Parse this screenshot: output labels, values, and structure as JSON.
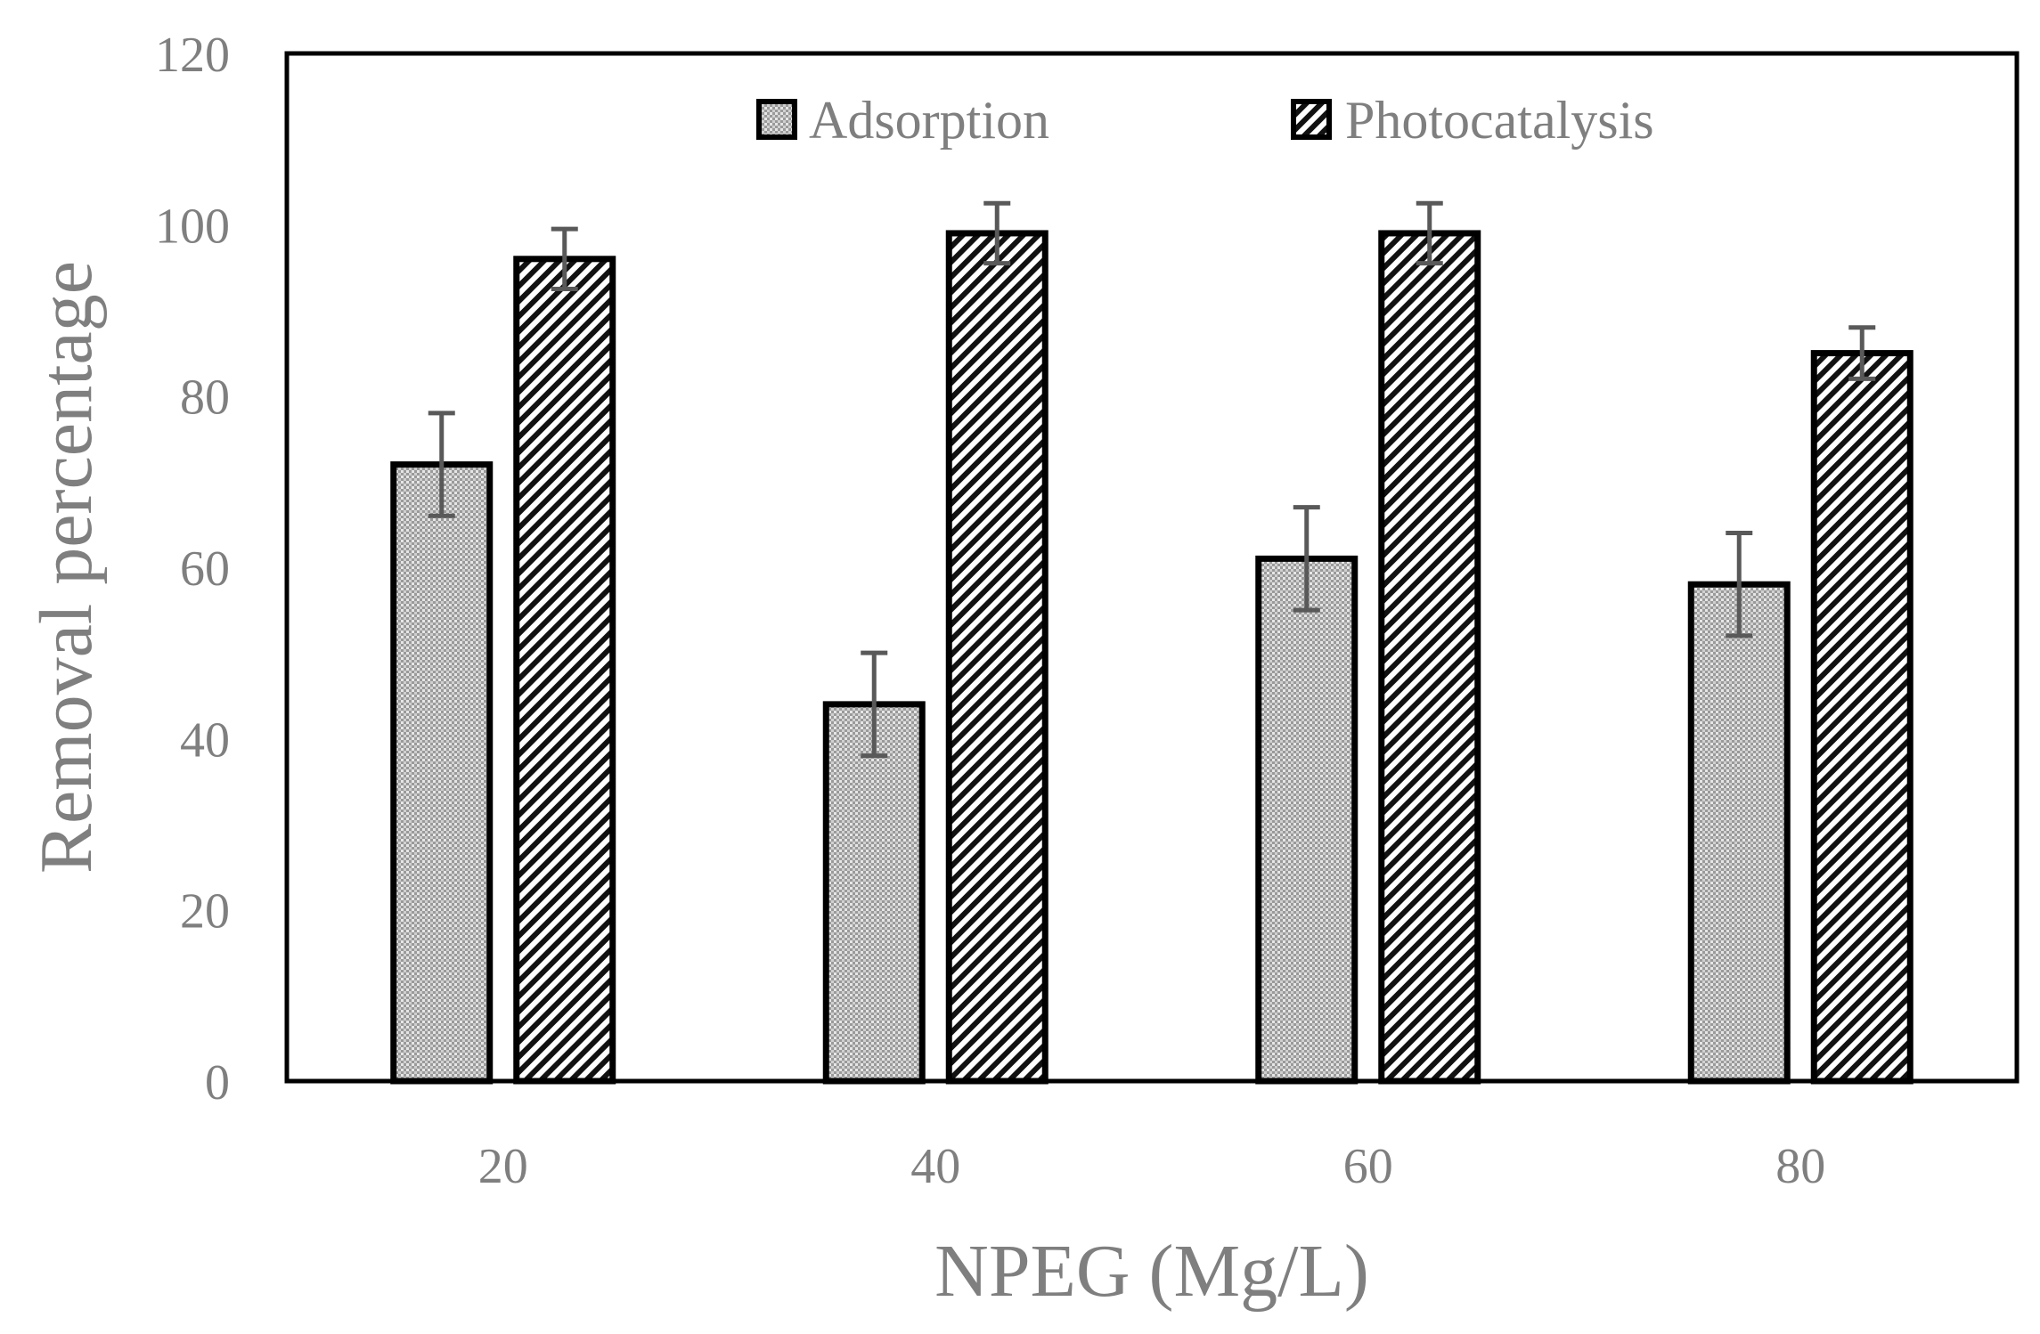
{
  "chart_data": {
    "type": "bar",
    "title": "",
    "xlabel": "NPEG (Mg/L)",
    "ylabel": "Removal percentage",
    "categories": [
      "20",
      "40",
      "60",
      "80"
    ],
    "ylim": [
      0,
      120
    ],
    "yticks": [
      0,
      20,
      40,
      60,
      80,
      100,
      120
    ],
    "grid": false,
    "legend_position": "top",
    "series": [
      {
        "name": "Adsorption",
        "values": [
          72,
          44,
          61,
          58
        ],
        "errors": [
          6,
          6,
          6,
          6
        ],
        "pattern": "dotted",
        "fill_color": "#bfbfbf"
      },
      {
        "name": "Photocatalysis",
        "values": [
          96,
          99,
          99,
          85
        ],
        "errors": [
          3.5,
          3.5,
          3.5,
          3
        ],
        "pattern": "diagonal-hatch",
        "fill_color": "#ffffff"
      }
    ],
    "colors": {
      "border": "#000000",
      "text": "#7f7f7f",
      "error_bar": "#595959"
    }
  }
}
